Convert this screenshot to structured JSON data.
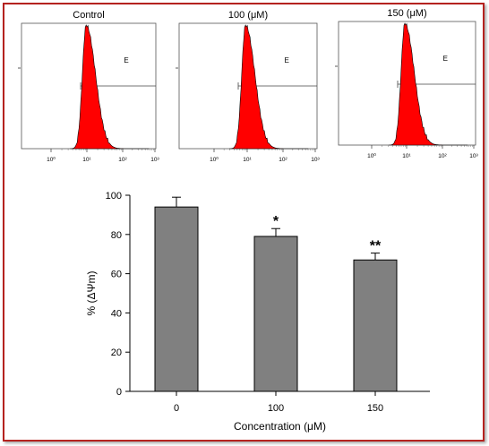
{
  "colors": {
    "frame": "#b5221f",
    "histogram_fill": "#ff0000",
    "bar_fill": "#808080"
  },
  "chart_data": [
    {
      "type": "histogram",
      "title": "Control",
      "gate_label": "E",
      "x_scale": "log",
      "x_tick_labels": [
        "10⁰",
        "10¹",
        "10²",
        "10³"
      ],
      "peak_decade": 0.98
    },
    {
      "type": "histogram",
      "title": "100 (μM)",
      "gate_label": "E",
      "x_scale": "log",
      "x_tick_labels": [
        "10⁰",
        "10¹",
        "10²",
        "10³"
      ],
      "peak_decade": 0.95
    },
    {
      "type": "histogram",
      "title": "150 (μM)",
      "gate_label": "E",
      "x_scale": "log",
      "x_tick_labels": [
        "10⁰",
        "10¹",
        "10²",
        "10³"
      ],
      "peak_decade": 0.95
    },
    {
      "type": "bar",
      "categories": [
        "0",
        "100",
        "150"
      ],
      "values": [
        94,
        79,
        67
      ],
      "errors": [
        5,
        4,
        3.5
      ],
      "annotations": [
        "",
        "*",
        "**"
      ],
      "xlabel": "Concentration (μM)",
      "ylabel": "% (ΔΨm)",
      "ylim": [
        0,
        100
      ],
      "y_ticks": [
        0,
        20,
        40,
        60,
        80,
        100
      ]
    }
  ]
}
